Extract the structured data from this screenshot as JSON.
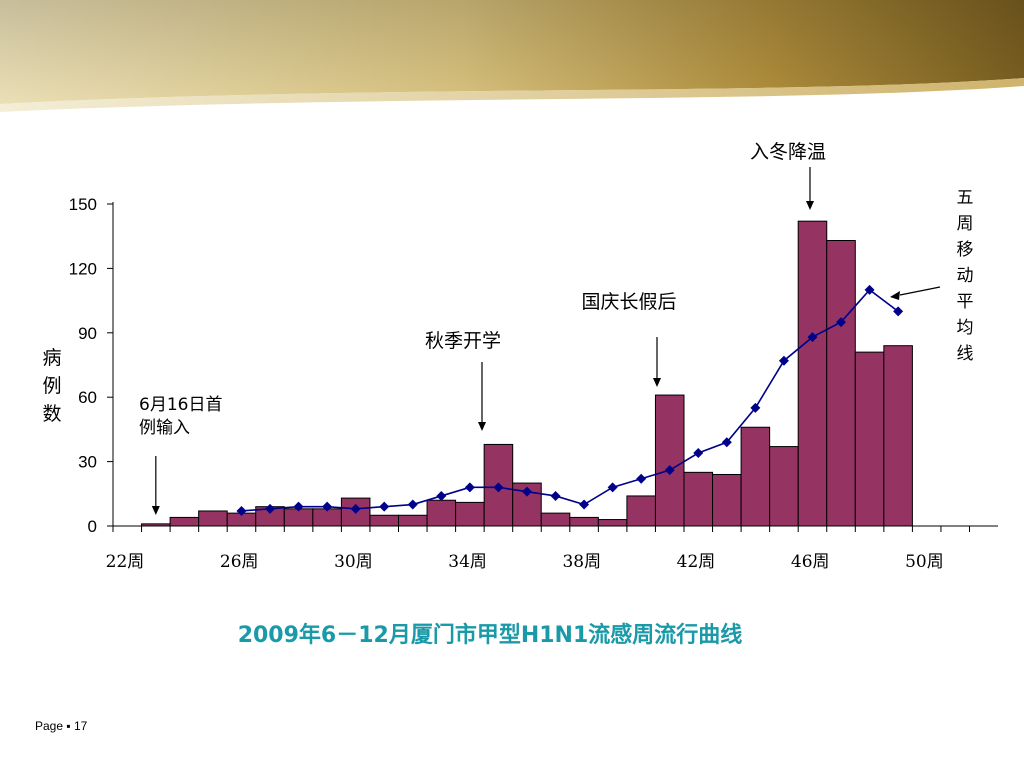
{
  "slide": {
    "footer": "Page ▪ 17"
  },
  "colors": {
    "bar_fill": "#953463",
    "bar_stroke": "#000000",
    "line": "#00008b",
    "title": "#1a9aa8",
    "banner_dark": "#7a5f20",
    "banner_light": "#e9dcae"
  },
  "chart_data": {
    "type": "bar",
    "title": "2009年6－12月厦门市甲型H1N1流感周流行曲线",
    "ylabel": "病例数",
    "xlabel": "",
    "ylim": [
      0,
      150
    ],
    "yticks": [
      "0",
      "30",
      "60",
      "90",
      "120",
      "150"
    ],
    "x_tick_labels": [
      "22周",
      "26周",
      "30周",
      "34周",
      "38周",
      "42周",
      "46周",
      "50周"
    ],
    "x_tick_weeks": [
      22,
      26,
      30,
      34,
      38,
      42,
      46,
      50
    ],
    "weeks": [
      23,
      24,
      25,
      26,
      27,
      28,
      29,
      30,
      31,
      32,
      33,
      34,
      35,
      36,
      37,
      38,
      39,
      40,
      41,
      42,
      43,
      44,
      45,
      46,
      47,
      48,
      49
    ],
    "series": [
      {
        "type": "bar",
        "values": [
          1,
          4,
          7,
          6,
          9,
          8,
          8,
          13,
          5,
          5,
          12,
          11,
          38,
          20,
          6,
          4,
          3,
          14,
          61,
          25,
          24,
          46,
          37,
          142,
          133,
          81,
          84
        ]
      },
      {
        "name": "五周移动平均线",
        "type": "line",
        "weeks": [
          26,
          27,
          28,
          29,
          30,
          31,
          32,
          33,
          34,
          35,
          36,
          37,
          38,
          39,
          40,
          41,
          42,
          43,
          44,
          45,
          46,
          47,
          48,
          49
        ],
        "values": [
          7,
          8,
          9,
          9,
          8,
          9,
          10,
          14,
          18,
          18,
          16,
          14,
          10,
          18,
          22,
          26,
          34,
          39,
          55,
          77,
          88,
          95,
          110,
          100
        ]
      }
    ],
    "annotations": [
      {
        "id": "first-case",
        "lines": [
          "6月16日首",
          "例输入"
        ],
        "week": 23
      },
      {
        "id": "autumn-school",
        "lines": [
          "秋季开学"
        ],
        "week": 35
      },
      {
        "id": "national-day",
        "lines": [
          "国庆长假后"
        ],
        "week": 41
      },
      {
        "id": "winter",
        "lines": [
          "入冬降温"
        ],
        "week": 46
      },
      {
        "id": "moving-average",
        "lines": [
          "五",
          "周",
          "移",
          "动",
          "平",
          "均",
          "线"
        ]
      }
    ]
  }
}
